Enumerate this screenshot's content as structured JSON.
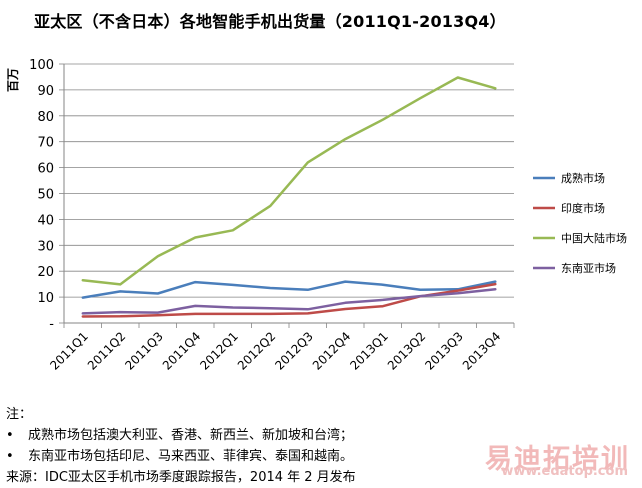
{
  "chart_data": {
    "type": "line",
    "title": "亚太区（不含日本）各地智能手机出货量（2011Q1-2013Q4）",
    "ylabel": "百万",
    "xlabel": "",
    "ylim": [
      0,
      100
    ],
    "y_ticks": [
      {
        "value": 0,
        "label": "-"
      },
      {
        "value": 10,
        "label": "10"
      },
      {
        "value": 20,
        "label": "20"
      },
      {
        "value": 30,
        "label": "30"
      },
      {
        "value": 40,
        "label": "40"
      },
      {
        "value": 50,
        "label": "50"
      },
      {
        "value": 60,
        "label": "60"
      },
      {
        "value": 70,
        "label": "70"
      },
      {
        "value": 80,
        "label": "80"
      },
      {
        "value": 90,
        "label": "90"
      },
      {
        "value": 100,
        "label": "100"
      }
    ],
    "categories": [
      "2011Q1",
      "2011Q2",
      "2011Q3",
      "2011Q4",
      "2012Q1",
      "2012Q2",
      "2012Q3",
      "2012Q4",
      "2013Q1",
      "2013Q2",
      "2013Q3",
      "2013Q4"
    ],
    "grid": true,
    "legend_position": "right",
    "series": [
      {
        "name": "成熟市场",
        "color": "#4a7ebb",
        "values": [
          9.8,
          12.2,
          11.4,
          15.8,
          14.7,
          13.5,
          12.8,
          16.0,
          14.8,
          12.8,
          13.0,
          16.0
        ]
      },
      {
        "name": "印度市场",
        "color": "#be4b48",
        "values": [
          2.5,
          2.6,
          3.0,
          3.5,
          3.5,
          3.5,
          3.7,
          5.4,
          6.5,
          10.3,
          12.5,
          15.0
        ]
      },
      {
        "name": "中国大陆市场",
        "color": "#98b954",
        "values": [
          16.5,
          14.9,
          25.8,
          33.0,
          35.8,
          45.2,
          62.0,
          71.0,
          78.5,
          86.8,
          94.8,
          90.6
        ]
      },
      {
        "name": "东南亚市场",
        "color": "#7d60a0",
        "values": [
          3.7,
          4.2,
          4.0,
          6.6,
          6.0,
          5.7,
          5.3,
          7.8,
          8.9,
          10.4,
          11.5,
          13.0
        ]
      }
    ]
  },
  "notes": {
    "heading": "注：",
    "bullet_char": "•",
    "items": [
      "成熟市场包括澳大利亚、香港、新西兰、新加坡和台湾；",
      "东南亚市场包括印尼、马来西亚、菲律宾、泰国和越南。"
    ],
    "source": "来源：IDC亚太区手机市场季度跟踪报告，2014 年 2 月发布"
  },
  "watermark": {
    "text": "易迪拓培训",
    "url": "www.edatop.com"
  }
}
